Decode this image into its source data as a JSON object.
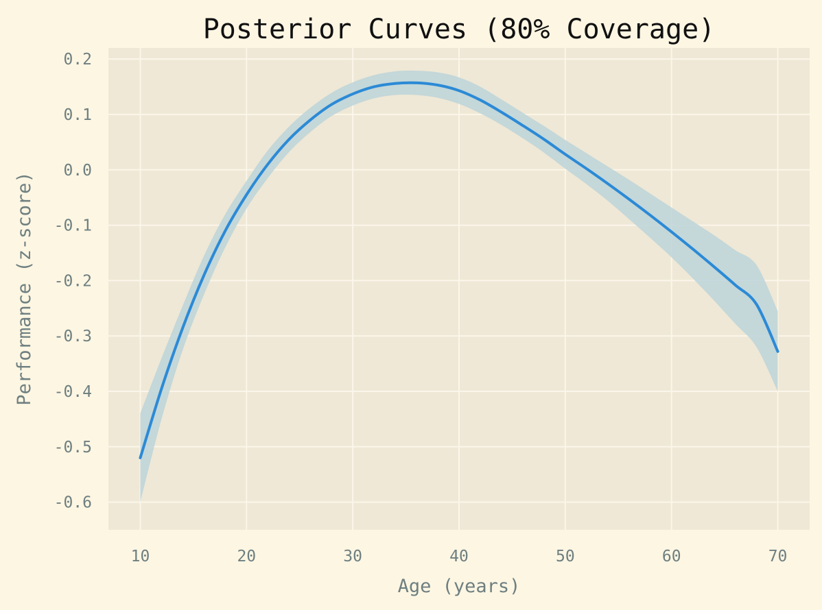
{
  "chart_data": {
    "type": "line",
    "title": "Posterior Curves (80% Coverage)",
    "xlabel": "Age (years)",
    "ylabel": "Performance (z-score)",
    "xlim": [
      7,
      73
    ],
    "ylim": [
      -0.65,
      0.22
    ],
    "xticks": [
      10,
      20,
      30,
      40,
      50,
      60,
      70
    ],
    "yticks": [
      0.2,
      0.1,
      0.0,
      -0.1,
      -0.2,
      -0.3,
      -0.4,
      -0.5,
      -0.6
    ],
    "ytick_labels": [
      "0.2",
      "0.1",
      "0.0",
      "-0.1",
      "-0.2",
      "-0.3",
      "-0.4",
      "-0.5",
      "-0.6"
    ],
    "grid": true,
    "colors": {
      "page_background": "#fdf6e3",
      "plot_background": "#efe8d6",
      "line": "#2b8ad6",
      "band": "#bcd3d9"
    },
    "series": [
      {
        "x": [
          10,
          12,
          14,
          16,
          18,
          20,
          22,
          24,
          26,
          28,
          30,
          32,
          34,
          36,
          38,
          40,
          42,
          44,
          46,
          48,
          50,
          52,
          54,
          56,
          58,
          60,
          62,
          64,
          66,
          68,
          70
        ],
        "y": [
          -0.52,
          -0.395,
          -0.285,
          -0.19,
          -0.11,
          -0.045,
          0.01,
          0.055,
          0.09,
          0.118,
          0.137,
          0.15,
          0.156,
          0.157,
          0.153,
          0.143,
          0.126,
          0.104,
          0.08,
          0.055,
          0.028,
          0.002,
          -0.025,
          -0.053,
          -0.082,
          -0.112,
          -0.143,
          -0.175,
          -0.208,
          -0.243,
          -0.328
        ],
        "lower": [
          -0.6,
          -0.45,
          -0.325,
          -0.225,
          -0.14,
          -0.07,
          -0.015,
          0.032,
          0.068,
          0.097,
          0.116,
          0.129,
          0.135,
          0.135,
          0.13,
          0.119,
          0.102,
          0.081,
          0.057,
          0.031,
          0.002,
          -0.026,
          -0.056,
          -0.089,
          -0.123,
          -0.158,
          -0.196,
          -0.236,
          -0.278,
          -0.32,
          -0.4
        ],
        "upper": [
          -0.44,
          -0.34,
          -0.245,
          -0.155,
          -0.08,
          -0.02,
          0.035,
          0.078,
          0.112,
          0.139,
          0.158,
          0.171,
          0.178,
          0.179,
          0.176,
          0.167,
          0.15,
          0.127,
          0.103,
          0.079,
          0.054,
          0.03,
          0.006,
          -0.018,
          -0.043,
          -0.068,
          -0.093,
          -0.118,
          -0.145,
          -0.172,
          -0.255
        ]
      }
    ]
  }
}
